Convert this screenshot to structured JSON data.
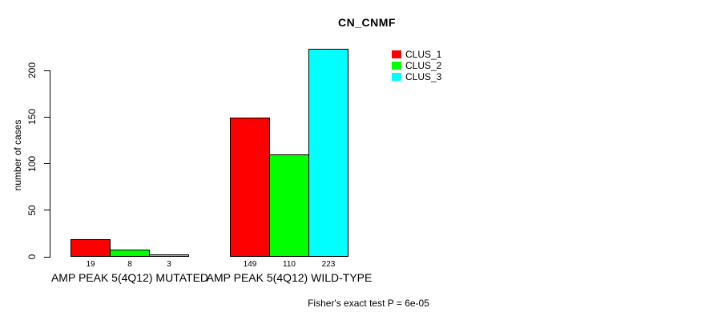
{
  "chart_data": {
    "type": "bar",
    "title": "CN_CNMF",
    "ylabel": "number of cases",
    "xlabel": "",
    "ylim": [
      0,
      200
    ],
    "yticks": [
      0,
      50,
      100,
      150,
      200
    ],
    "grid": false,
    "legend_position": "top-right",
    "categories": [
      "AMP PEAK 5(4Q12) MUTATED",
      "AMP PEAK 5(4Q12) WILD-TYPE"
    ],
    "series": [
      {
        "name": "CLUS_1",
        "color": "#ff0000",
        "values": [
          19,
          149
        ]
      },
      {
        "name": "CLUS_2",
        "color": "#00ff00",
        "values": [
          8,
          110
        ]
      },
      {
        "name": "CLUS_3",
        "color": "#00ffff",
        "values": [
          3,
          223
        ]
      }
    ],
    "bar_value_labels": [
      [
        19,
        8,
        3
      ],
      [
        149,
        110,
        223
      ]
    ],
    "annotation": "Fisher's exact test P = 6e-05"
  }
}
